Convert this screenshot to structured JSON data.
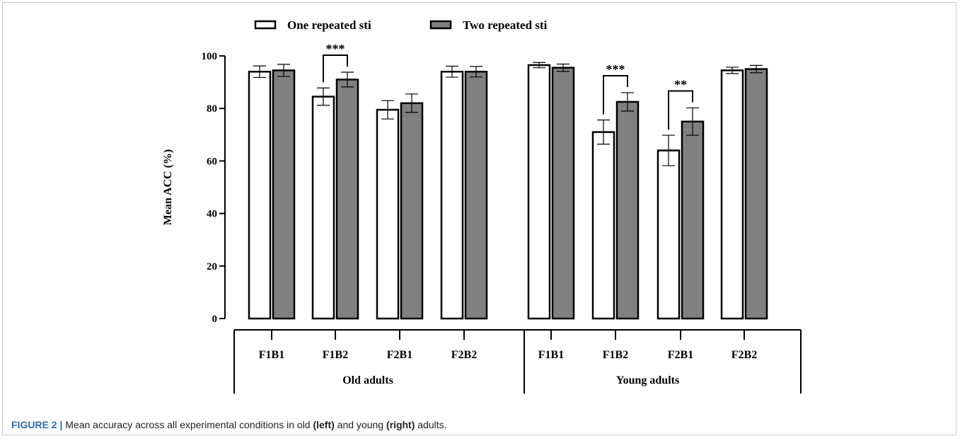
{
  "chart_data": {
    "type": "bar",
    "title": "",
    "ylabel": "Mean ACC (%)",
    "xlabel": "",
    "ylim": [
      0,
      100
    ],
    "yticks": [
      0,
      20,
      40,
      60,
      80,
      100
    ],
    "legend_position": "top",
    "groups": [
      {
        "name": "Old adults",
        "categories": [
          "F1B1",
          "F1B2",
          "F2B1",
          "F2B2"
        ],
        "series": [
          {
            "name": "One repeated sti",
            "values": [
              94,
              84.5,
              79.5,
              94
            ],
            "errors": [
              2.2,
              3.3,
              3.5,
              2.1
            ]
          },
          {
            "name": "Two repeated sti",
            "values": [
              94.5,
              91,
              82,
              94
            ],
            "errors": [
              2.3,
              2.8,
              3.5,
              2.0
            ]
          }
        ],
        "significance": [
          {
            "category_index": 1,
            "label": "***"
          }
        ]
      },
      {
        "name": "Young adults",
        "categories": [
          "F1B1",
          "F1B2",
          "F2B1",
          "F2B2"
        ],
        "series": [
          {
            "name": "One repeated sti",
            "values": [
              96.5,
              71,
              64,
              94.5
            ],
            "errors": [
              1.0,
              4.6,
              5.8,
              1.2
            ]
          },
          {
            "name": "Two repeated sti",
            "values": [
              95.5,
              82.5,
              75,
              95
            ],
            "errors": [
              1.4,
              3.5,
              5.2,
              1.4
            ]
          }
        ],
        "significance": [
          {
            "category_index": 1,
            "label": "***"
          },
          {
            "category_index": 2,
            "label": "**"
          }
        ]
      }
    ],
    "series_colors": {
      "One repeated sti": "#ffffff",
      "Two repeated sti": "#808080"
    }
  },
  "caption": {
    "label": "FIGURE 2 |",
    "text_1": " Mean accuracy across all experimental conditions in old ",
    "bold_1": "(left)",
    "text_2": " and young ",
    "bold_2": "(right)",
    "text_3": " adults."
  }
}
